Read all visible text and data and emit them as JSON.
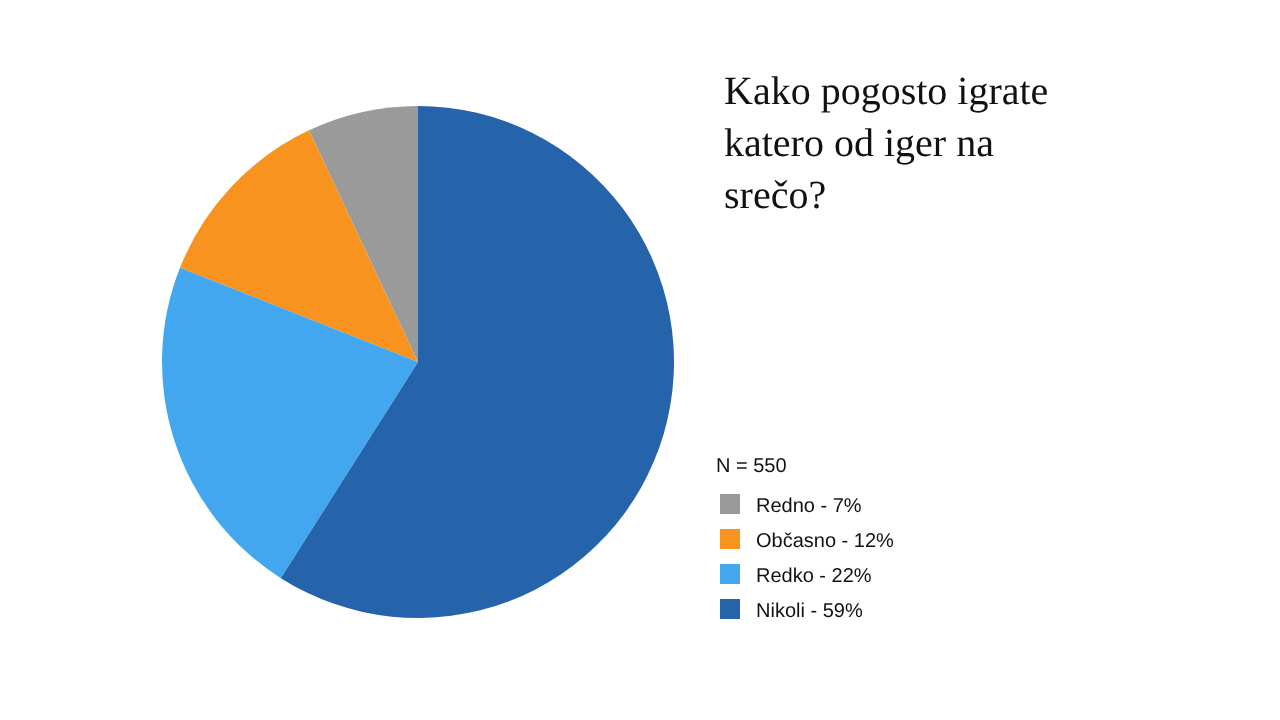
{
  "chart_data": {
    "type": "pie",
    "title": "Kako pogosto igrate katero od iger na srečo?",
    "legend_title": "N = 550",
    "categories": [
      "Redno - 7%",
      "Občasno - 12%",
      "Redko - 22%",
      "Nikoli - 59%"
    ],
    "values": [
      7,
      12,
      22,
      59
    ],
    "colors": [
      "#9a9a9a",
      "#f7931e",
      "#42a7ee",
      "#2563ab"
    ],
    "legend": "right"
  }
}
